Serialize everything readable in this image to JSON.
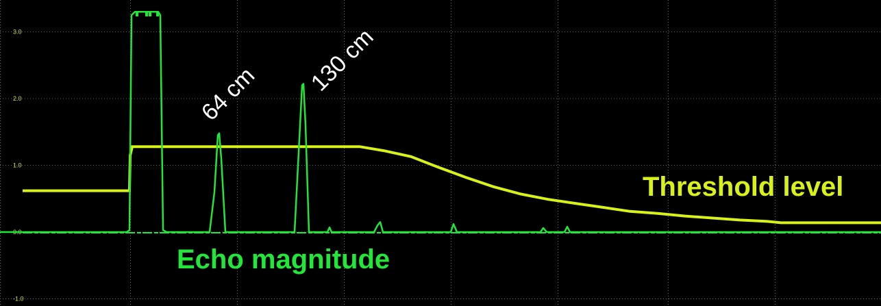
{
  "colors": {
    "background": "#000000",
    "grid": "#6b6b6b",
    "echo": "#22e63a",
    "threshold": "#d8f218",
    "annotation": "#ffffff",
    "tick_text": "#c8e63c"
  },
  "chart_data": {
    "type": "line",
    "title": "",
    "xlabel": "",
    "ylabel": "",
    "grid": true,
    "xlim": [
      0,
      1286
    ],
    "ylim": [
      -1.0,
      3.0
    ],
    "y_ticks": [
      {
        "value": 3.0,
        "label": "3.0"
      },
      {
        "value": 2.0,
        "label": "2.0"
      },
      {
        "value": 1.0,
        "label": "1.0"
      },
      {
        "value": 0.0,
        "label": "0.0"
      },
      {
        "value": -1.0,
        "label": "-1.0"
      }
    ],
    "x_gridlines": [
      0,
      190,
      346,
      502,
      658,
      814,
      975,
      1131
    ],
    "series": [
      {
        "name": "Echo magnitude",
        "key": "echo",
        "points": [
          [
            0,
            0.0
          ],
          [
            185,
            0.0
          ],
          [
            189,
            0.03
          ],
          [
            192,
            3.25
          ],
          [
            197,
            3.3
          ],
          [
            231,
            3.3
          ],
          [
            234,
            3.25
          ],
          [
            238,
            0.03
          ],
          [
            243,
            0.0
          ],
          [
            306,
            0.0
          ],
          [
            313,
            0.6
          ],
          [
            318,
            1.45
          ],
          [
            320,
            1.48
          ],
          [
            323,
            1.1
          ],
          [
            329,
            0.0
          ],
          [
            430,
            0.0
          ],
          [
            436,
            1.2
          ],
          [
            441,
            2.2
          ],
          [
            443,
            2.22
          ],
          [
            446,
            1.6
          ],
          [
            451,
            0.0
          ],
          [
            478,
            0.0
          ],
          [
            481,
            0.07
          ],
          [
            484,
            0.0
          ],
          [
            546,
            0.0
          ],
          [
            551,
            0.1
          ],
          [
            555,
            0.15
          ],
          [
            559,
            0.0
          ],
          [
            658,
            0.0
          ],
          [
            662,
            0.12
          ],
          [
            667,
            0.0
          ],
          [
            789,
            0.0
          ],
          [
            793,
            0.06
          ],
          [
            798,
            0.0
          ],
          [
            824,
            0.0
          ],
          [
            828,
            0.08
          ],
          [
            832,
            0.0
          ],
          [
            1286,
            0.0
          ]
        ]
      },
      {
        "name": "Threshold level",
        "key": "threshold",
        "points": [
          [
            33,
            0.62
          ],
          [
            189,
            0.62
          ],
          [
            190,
            1.15
          ],
          [
            193,
            1.28
          ],
          [
            525,
            1.28
          ],
          [
            560,
            1.22
          ],
          [
            600,
            1.13
          ],
          [
            640,
            0.97
          ],
          [
            680,
            0.82
          ],
          [
            720,
            0.68
          ],
          [
            760,
            0.57
          ],
          [
            800,
            0.49
          ],
          [
            840,
            0.43
          ],
          [
            880,
            0.37
          ],
          [
            920,
            0.31
          ],
          [
            960,
            0.28
          ],
          [
            1000,
            0.24
          ],
          [
            1040,
            0.21
          ],
          [
            1080,
            0.18
          ],
          [
            1120,
            0.16
          ],
          [
            1140,
            0.14
          ],
          [
            1286,
            0.14
          ]
        ]
      }
    ],
    "annotations": [
      {
        "text": "64 cm",
        "key": "peak1",
        "target_x": 320
      },
      {
        "text": "130 cm",
        "key": "peak2",
        "target_x": 443
      }
    ]
  }
}
